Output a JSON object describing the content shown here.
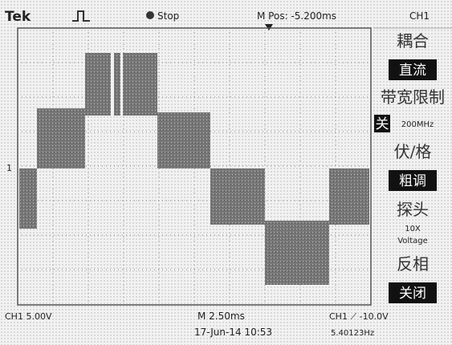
{
  "header": {
    "brand": "Tek",
    "status": "Stop",
    "position": "M Pos: -5.200ms",
    "channel": "CH1"
  },
  "screen": {
    "ground_marker": "1"
  },
  "menu": [
    {
      "title": "耦合",
      "value": "直流"
    },
    {
      "title": "带宽限制",
      "value": "关",
      "note": "200MHz"
    },
    {
      "title": "伏/格",
      "value": "粗调"
    },
    {
      "title": "探头",
      "value": "10X",
      "note": "Voltage"
    },
    {
      "title": "反相",
      "value": "关闭"
    }
  ],
  "footer": {
    "scale": "CH1 5.00V",
    "timebase": "M 2.50ms",
    "trigger": "CH1 ⟋ -10.0V",
    "date": "17-Jun-14 10:53",
    "frequency": "5.40123Hz"
  }
}
